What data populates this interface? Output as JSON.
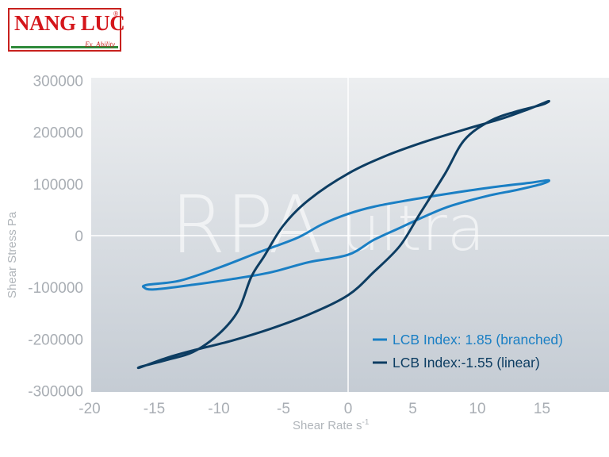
{
  "logo": {
    "brand": "NANG LUC",
    "reg_mark": "®",
    "slogan": "Ex. Ability"
  },
  "watermark": {
    "primary": "RPA",
    "secondary": "ultra"
  },
  "colors": {
    "branched": "#1a7fc4",
    "linear": "#0d3d62",
    "plot_bg_top": "#eceef0",
    "plot_bg_bottom": "#c5ccd4",
    "tick_text": "#a9aeb4",
    "logo_red": "#d4161b",
    "logo_green": "#2f8a3a"
  },
  "chart_data": {
    "type": "line",
    "title": "",
    "xlabel": "Shear Rate s",
    "xlabel_superscript": "-1",
    "ylabel": "Shear Stress Pa",
    "xlim": [
      -20,
      20
    ],
    "ylim": [
      -300000,
      300000
    ],
    "x_ticks": [
      "-20",
      "-15",
      "-10",
      "-5",
      "0",
      "5",
      "10",
      "15"
    ],
    "y_ticks": [
      "300000",
      "200000",
      "100000",
      "0",
      "-100000",
      "-200000",
      "-300000"
    ],
    "grid": false,
    "legend_position": "bottom-right",
    "series": [
      {
        "name": "LCB Index: 1.85 (branched)",
        "color": "#1a7fc4",
        "points": [
          [
            -15.5,
            -95000
          ],
          [
            -13,
            -87000
          ],
          [
            -10,
            -62000
          ],
          [
            -7,
            -33000
          ],
          [
            -4,
            -5000
          ],
          [
            -2,
            22000
          ],
          [
            0,
            42000
          ],
          [
            2,
            56000
          ],
          [
            5,
            70000
          ],
          [
            8,
            82000
          ],
          [
            11,
            93000
          ],
          [
            14,
            102000
          ],
          [
            15.5,
            107000
          ],
          [
            15,
            100000
          ],
          [
            13,
            88000
          ],
          [
            11,
            78000
          ],
          [
            8,
            58000
          ],
          [
            6,
            38000
          ],
          [
            4,
            15000
          ],
          [
            2,
            -8000
          ],
          [
            0,
            -37000
          ],
          [
            -3,
            -51000
          ],
          [
            -6,
            -71000
          ],
          [
            -9,
            -84000
          ],
          [
            -12,
            -95000
          ],
          [
            -15,
            -104000
          ],
          [
            -15.8,
            -100000
          ]
        ]
      },
      {
        "name": "LCB Index:-1.55 (linear)",
        "color": "#0d3d62",
        "points": [
          [
            -16,
            -253000
          ],
          [
            -14,
            -240000
          ],
          [
            -12,
            -225000
          ],
          [
            -10,
            -190000
          ],
          [
            -8.5,
            -145000
          ],
          [
            -7.5,
            -80000
          ],
          [
            -6.5,
            -40000
          ],
          [
            -5,
            20000
          ],
          [
            -3,
            70000
          ],
          [
            0,
            120000
          ],
          [
            3,
            155000
          ],
          [
            6,
            182000
          ],
          [
            9,
            205000
          ],
          [
            12,
            227000
          ],
          [
            14,
            245000
          ],
          [
            15.5,
            260000
          ],
          [
            15,
            253000
          ],
          [
            13,
            240000
          ],
          [
            11,
            222000
          ],
          [
            9,
            185000
          ],
          [
            7.5,
            120000
          ],
          [
            5.5,
            40000
          ],
          [
            4,
            -20000
          ],
          [
            2,
            -70000
          ],
          [
            0,
            -115000
          ],
          [
            -3,
            -152000
          ],
          [
            -6,
            -180000
          ],
          [
            -9,
            -203000
          ],
          [
            -12,
            -222000
          ],
          [
            -14,
            -236000
          ],
          [
            -16,
            -254000
          ]
        ]
      }
    ]
  }
}
